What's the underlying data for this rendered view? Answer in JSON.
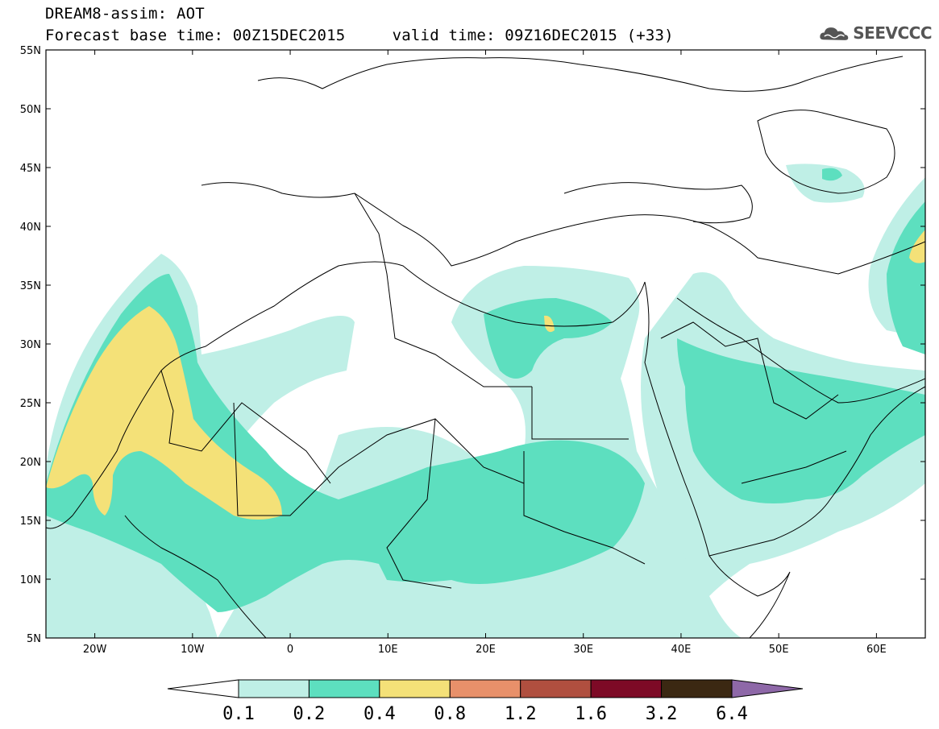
{
  "header": {
    "line1": "DREAM8-assim: AOT",
    "line2": "Forecast base time: 00Z15DEC2015     valid time: 09Z16DEC2015 (+33)"
  },
  "logo": {
    "text": "SEEVCCC",
    "icon": "cloud-logo-icon"
  },
  "map": {
    "projection": "lat-lon",
    "lon_range": [
      -25,
      65
    ],
    "lat_range": [
      5,
      55
    ],
    "lat_ticks": [
      "5N",
      "10N",
      "15N",
      "20N",
      "25N",
      "30N",
      "35N",
      "40N",
      "45N",
      "50N",
      "55N"
    ],
    "lon_ticks": [
      "20W",
      "10W",
      "0",
      "10E",
      "20E",
      "30E",
      "40E",
      "50E",
      "60E"
    ]
  },
  "legend": {
    "labels": [
      "0.1",
      "0.2",
      "0.4",
      "0.8",
      "1.2",
      "1.6",
      "3.2",
      "6.4"
    ],
    "colors": [
      "#ffffff",
      "#bfefe6",
      "#5ddfbf",
      "#f4e178",
      "#e8906a",
      "#b04f3f",
      "#7d0a26",
      "#3b2812",
      "#8e68a8"
    ]
  }
}
